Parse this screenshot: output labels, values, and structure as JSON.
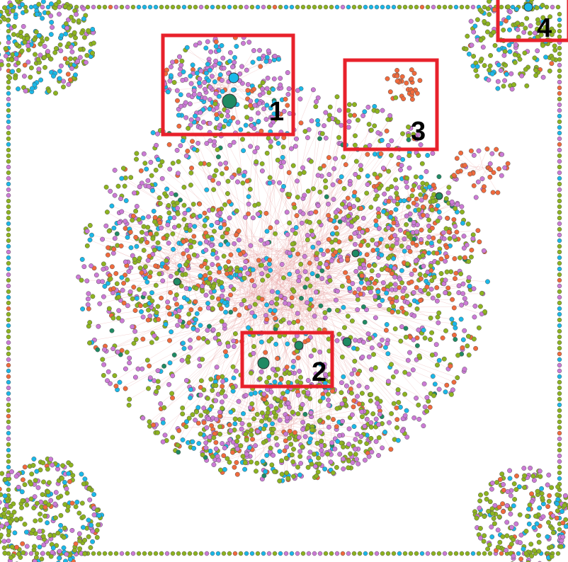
{
  "palette": {
    "olive": "#8db31f",
    "purple": "#cc7ad6",
    "cyan": "#1ab8e8",
    "orange": "#f06a3c",
    "teal": "#1f8a63",
    "edge": "#e8a0a0",
    "box": "#e8212b",
    "label": "#000000"
  },
  "regions": [
    {
      "id": "1",
      "label": "1"
    },
    {
      "id": "2",
      "label": "2"
    },
    {
      "id": "3",
      "label": "3"
    },
    {
      "id": "4",
      "label": "4"
    }
  ]
}
